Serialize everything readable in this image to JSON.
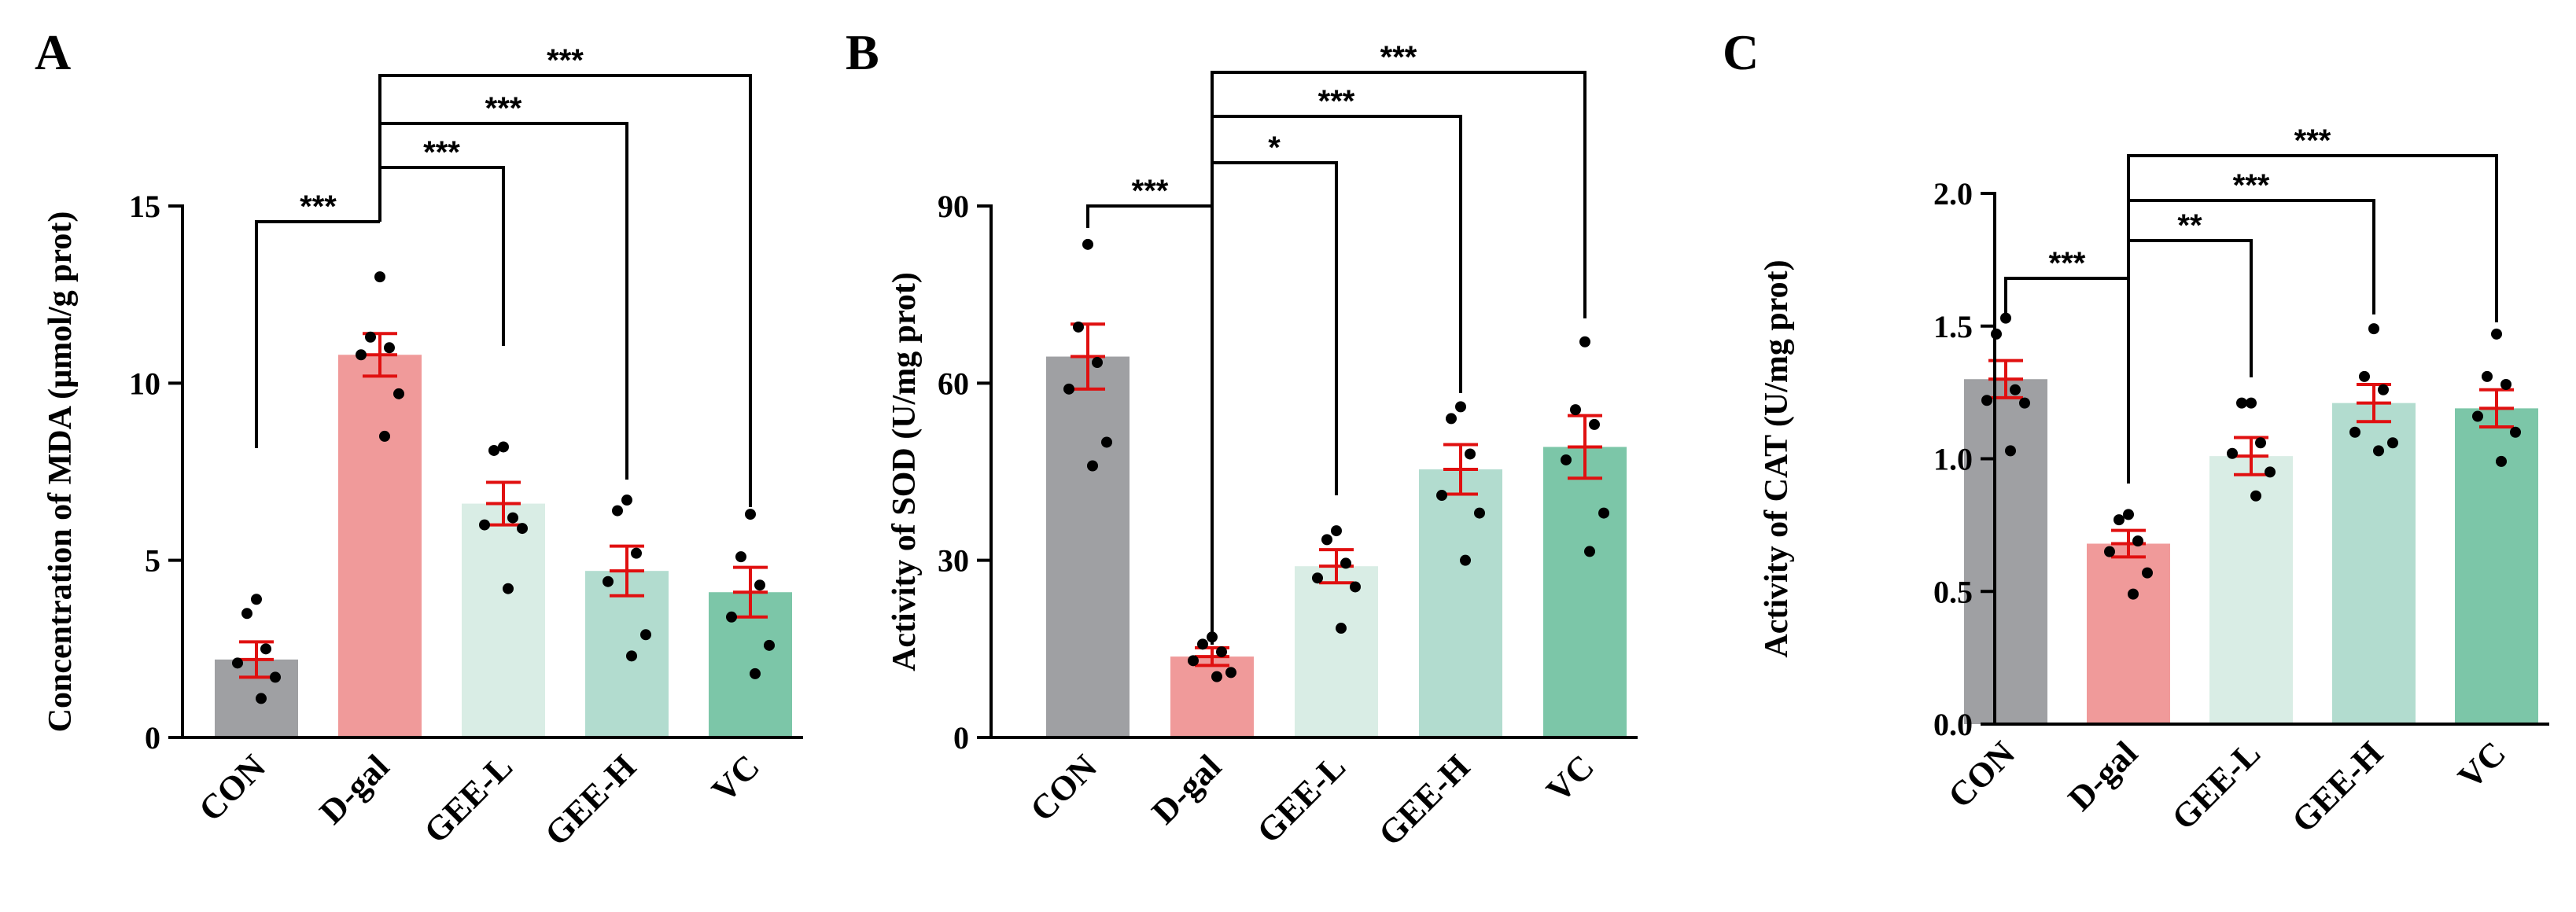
{
  "colors": {
    "CON": "#9fa0a3",
    "D-gal": "#f09a9a",
    "GEE-L": "#d9ede5",
    "GEE-H": "#b2dccf",
    "VC": "#7cc6a8",
    "error_bar": "#e01010",
    "dot": "#000000"
  },
  "chart_data": [
    {
      "type": "bar",
      "panel": "A",
      "categories": [
        "CON",
        "D-gal",
        "GEE-L",
        "GEE-H",
        "VC"
      ],
      "values": [
        2.2,
        10.8,
        6.6,
        4.7,
        4.1
      ],
      "sem": [
        0.5,
        0.6,
        0.6,
        0.7,
        0.7
      ],
      "points": [
        [
          3.9,
          3.5,
          2.5,
          2.1,
          1.7,
          1.1
        ],
        [
          13.0,
          11.3,
          11.0,
          10.8,
          9.7,
          8.5
        ],
        [
          8.2,
          8.1,
          6.2,
          6.0,
          5.9,
          4.2
        ],
        [
          6.7,
          6.4,
          5.2,
          4.4,
          2.9,
          2.3
        ],
        [
          6.3,
          5.1,
          4.3,
          3.4,
          2.6,
          1.8
        ]
      ],
      "xlabel": "",
      "ylabel": "Concentration of MDA (µmol/g prot)",
      "ylim": [
        0,
        15
      ],
      "yticks": [
        0,
        5,
        10,
        15
      ],
      "significance": [
        {
          "from": 0,
          "to": 1,
          "label": "***",
          "level": 0
        },
        {
          "from": 1,
          "to": 2,
          "label": "***",
          "level": 1
        },
        {
          "from": 1,
          "to": 3,
          "label": "***",
          "level": 2
        },
        {
          "from": 1,
          "to": 4,
          "label": "***",
          "level": 3
        }
      ]
    },
    {
      "type": "bar",
      "panel": "B",
      "categories": [
        "CON",
        "D-gal",
        "GEE-L",
        "GEE-H",
        "VC"
      ],
      "values": [
        64.5,
        13.7,
        29.0,
        45.4,
        49.2
      ],
      "sem": [
        5.5,
        1.5,
        2.8,
        4.2,
        5.3
      ],
      "points": [
        [
          83.5,
          69.5,
          63.5,
          59.0,
          50.0,
          46.0
        ],
        [
          17.0,
          15.8,
          14.5,
          13.0,
          11.0,
          10.3
        ],
        [
          35.0,
          33.5,
          29.5,
          27.0,
          25.5,
          18.5
        ],
        [
          56.0,
          54.0,
          48.0,
          41.0,
          38.0,
          30.0
        ],
        [
          67.0,
          55.5,
          53.0,
          47.0,
          38.0,
          31.5
        ]
      ],
      "xlabel": "",
      "ylabel": "Activity of SOD (U/mg prot)",
      "ylim": [
        0,
        90
      ],
      "yticks": [
        0,
        30,
        60,
        90
      ],
      "significance": [
        {
          "from": 0,
          "to": 1,
          "label": "***",
          "level": 0
        },
        {
          "from": 1,
          "to": 2,
          "label": "*",
          "level": 1
        },
        {
          "from": 1,
          "to": 3,
          "label": "***",
          "level": 2
        },
        {
          "from": 1,
          "to": 4,
          "label": "***",
          "level": 3
        }
      ]
    },
    {
      "type": "bar",
      "panel": "C",
      "categories": [
        "CON",
        "D-gal",
        "GEE-L",
        "GEE-H",
        "VC"
      ],
      "values": [
        1.3,
        0.68,
        1.01,
        1.21,
        1.19
      ],
      "sem": [
        0.07,
        0.05,
        0.07,
        0.07,
        0.07
      ],
      "points": [
        [
          1.53,
          1.47,
          1.26,
          1.22,
          1.21,
          1.03
        ],
        [
          0.79,
          0.77,
          0.69,
          0.65,
          0.57,
          0.49
        ],
        [
          1.21,
          1.21,
          1.06,
          1.02,
          0.95,
          0.86
        ],
        [
          1.49,
          1.31,
          1.26,
          1.1,
          1.06,
          1.03
        ],
        [
          1.47,
          1.31,
          1.28,
          1.16,
          1.1,
          0.99
        ]
      ],
      "xlabel": "",
      "ylabel": "Activity of CAT (U/mg prot)",
      "ylim": [
        0,
        2.0
      ],
      "yticks": [
        "0.0",
        "0.5",
        "1.0",
        "1.5",
        "2.0"
      ],
      "significance": [
        {
          "from": 0,
          "to": 1,
          "label": "***",
          "level": 0
        },
        {
          "from": 1,
          "to": 2,
          "label": "**",
          "level": 1
        },
        {
          "from": 1,
          "to": 3,
          "label": "***",
          "level": 2
        },
        {
          "from": 1,
          "to": 4,
          "label": "***",
          "level": 3
        }
      ]
    }
  ]
}
